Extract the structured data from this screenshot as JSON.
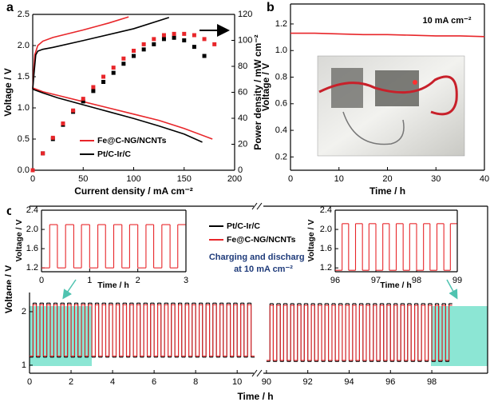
{
  "chart_data": [
    {
      "type": "line",
      "label": "a",
      "xlabel": "Current density / mA cm⁻²",
      "ylabel": "Voltage / V",
      "y2label": "Power density / mW cm⁻²",
      "xlim": [
        0,
        200
      ],
      "xticks": [
        0,
        50,
        100,
        150,
        200
      ],
      "ylim": [
        0,
        2.5
      ],
      "yticks": [
        {
          "value": 0,
          "label": "0.0"
        },
        0.5,
        {
          "value": 1,
          "label": "1.0"
        },
        1.5,
        {
          "value": 2,
          "label": "2.0"
        },
        2.5
      ],
      "y2lim": [
        0,
        120
      ],
      "y2ticks": [
        0,
        20,
        40,
        60,
        80,
        100,
        120
      ],
      "legend": "lower left",
      "series": [
        {
          "name": "Fe@C-NG/NCNTs",
          "color": "#e8262a",
          "x": [
            0,
            10,
            25,
            50,
            75,
            100,
            125,
            150,
            178
          ],
          "values": [
            1.32,
            1.26,
            1.2,
            1.1,
            1.0,
            0.9,
            0.8,
            0.67,
            0.5
          ]
        },
        {
          "name": "Pt/C-Ir/C",
          "color": "#000000",
          "x": [
            0,
            10,
            25,
            50,
            75,
            100,
            125,
            150,
            168
          ],
          "values": [
            1.3,
            1.24,
            1.16,
            1.05,
            0.94,
            0.83,
            0.71,
            0.58,
            0.45
          ]
        },
        {
          "color": "#e8262a",
          "x": [
            0,
            1,
            2,
            5,
            10,
            20,
            50,
            75,
            95
          ],
          "values": [
            1.3,
            1.6,
            1.85,
            2.0,
            2.07,
            2.13,
            2.25,
            2.36,
            2.46
          ]
        },
        {
          "color": "#000000",
          "x": [
            0,
            1,
            3,
            5,
            10,
            20,
            50,
            100,
            135
          ],
          "values": [
            1.3,
            1.5,
            1.85,
            1.91,
            1.94,
            1.97,
            2.08,
            2.27,
            2.45
          ]
        },
        {
          "color": "#000000",
          "axis": "y2",
          "marker": "square",
          "x": [
            0,
            10,
            20,
            30,
            40,
            50,
            60,
            70,
            80,
            90,
            100,
            110,
            120,
            130,
            140,
            150,
            160,
            170
          ],
          "values": [
            0,
            13,
            24,
            35,
            45,
            53,
            61,
            68,
            75,
            82,
            88,
            93,
            97,
            101,
            102,
            100,
            95,
            88
          ]
        },
        {
          "color": "#e8262a",
          "axis": "y2",
          "marker": "square",
          "x": [
            0,
            10,
            20,
            30,
            40,
            50,
            60,
            70,
            80,
            90,
            100,
            110,
            120,
            130,
            140,
            150,
            160,
            170,
            180
          ],
          "values": [
            0,
            13,
            25,
            36,
            46,
            55,
            64,
            72,
            79,
            86,
            92,
            97,
            101,
            104,
            105,
            105,
            104,
            101,
            97
          ]
        }
      ]
    },
    {
      "type": "line",
      "label": "b",
      "xlabel": "Time / h",
      "ylabel": "Voltage / V",
      "annotation": "10 mA cm⁻²",
      "xlim": [
        0,
        40
      ],
      "xticks": [
        0,
        10,
        20,
        30,
        40
      ],
      "ylim": [
        0.1,
        1.35
      ],
      "yticks": [
        0.2,
        0.4,
        0.6,
        0.8,
        {
          "value": 1,
          "label": "1.0"
        },
        1.2
      ],
      "series": [
        {
          "color": "#e8262a",
          "x": [
            0,
            5,
            10,
            15,
            20,
            25,
            30,
            35,
            40
          ],
          "values": [
            1.13,
            1.13,
            1.125,
            1.12,
            1.12,
            1.115,
            1.11,
            1.11,
            1.105
          ]
        }
      ]
    },
    {
      "type": "step",
      "label": "c",
      "xlabel": "Time / h",
      "ylabel": "Voltage / V",
      "annotation": [
        "Charging and discharging",
        "at 10 mA cm⁻²"
      ],
      "xlim": [
        0,
        10.8
      ],
      "xticks": [
        0,
        2,
        4,
        6,
        8,
        10
      ],
      "ylim": [
        0.85,
        3.97
      ],
      "yticks": [
        1,
        2
      ],
      "x": [
        0,
        0.17,
        0.33,
        0.5,
        0.67,
        0.83,
        1,
        1.17,
        1.33,
        1.5,
        1.67,
        1.83,
        2,
        2.17,
        2.33,
        2.5,
        2.67,
        2.83,
        3,
        3.17,
        3.33,
        3.5,
        3.67,
        3.83,
        4,
        4.17,
        4.33,
        4.5,
        4.67,
        4.83,
        5,
        5.17,
        5.33,
        5.5,
        5.67,
        5.83,
        6,
        6.17,
        6.33,
        6.5,
        6.67,
        6.83,
        7,
        7.17,
        7.33,
        7.5,
        7.67,
        7.83,
        8,
        8.17,
        8.33,
        8.5,
        8.67,
        8.83,
        9,
        9.17,
        9.33,
        9.5,
        9.67,
        9.83,
        10,
        10.17,
        10.33,
        10.5,
        10.67
      ],
      "series": [
        {
          "name": "Pt/C-Ir/C",
          "color": "#000000",
          "values": [
            1.15,
            2.16,
            1.15,
            2.16,
            1.15,
            2.16,
            1.15,
            2.16,
            1.15,
            2.16,
            1.15,
            2.16,
            1.15,
            2.16,
            1.15,
            2.16,
            1.15,
            2.16,
            1.15,
            2.16,
            1.15,
            2.16,
            1.15,
            2.16,
            1.15,
            2.16,
            1.15,
            2.16,
            1.15,
            2.16,
            1.15,
            2.16,
            1.15,
            2.16,
            1.15,
            2.16,
            1.15,
            2.16,
            1.15,
            2.16,
            1.15,
            2.16,
            1.15,
            2.16,
            1.15,
            2.16,
            1.15,
            2.16,
            1.15,
            2.16,
            1.15,
            2.16,
            1.15,
            2.16,
            1.15,
            2.16,
            1.15,
            2.16,
            1.15,
            2.16,
            1.15,
            2.16,
            1.15,
            2.16,
            1.15
          ]
        },
        {
          "name": "Fe@C-NG/NCNTs",
          "color": "#e8262a",
          "values": [
            1.17,
            2.13,
            1.17,
            2.13,
            1.17,
            2.13,
            1.17,
            2.13,
            1.17,
            2.13,
            1.17,
            2.13,
            1.17,
            2.13,
            1.17,
            2.13,
            1.17,
            2.13,
            1.17,
            2.13,
            1.17,
            2.13,
            1.17,
            2.13,
            1.17,
            2.13,
            1.17,
            2.13,
            1.17,
            2.13,
            1.17,
            2.13,
            1.17,
            2.13,
            1.17,
            2.13,
            1.17,
            2.13,
            1.17,
            2.13,
            1.17,
            2.13,
            1.17,
            2.13,
            1.17,
            2.13,
            1.17,
            2.13,
            1.17,
            2.13,
            1.17,
            2.13,
            1.17,
            2.13,
            1.17,
            2.13,
            1.17,
            2.13,
            1.17,
            2.13,
            1.17,
            2.13,
            1.17,
            2.13,
            1.17
          ]
        }
      ]
    },
    {
      "type": "step",
      "xlim": [
        89.85,
        100.7
      ],
      "xticks": [
        90,
        92,
        94,
        96,
        98
      ],
      "ylim": [
        0.85,
        3.97
      ],
      "x": [
        90,
        90.17,
        90.33,
        90.5,
        90.67,
        90.83,
        91,
        91.17,
        91.33,
        91.5,
        91.67,
        91.83,
        92,
        92.17,
        92.33,
        92.5,
        92.67,
        92.83,
        93,
        93.17,
        93.33,
        93.5,
        93.67,
        93.83,
        94,
        94.17,
        94.33,
        94.5,
        94.67,
        94.83,
        95,
        95.17,
        95.33,
        95.5,
        95.67,
        95.83,
        96,
        96.17,
        96.33,
        96.5,
        96.67,
        96.83,
        97,
        97.17,
        97.33,
        97.5,
        97.67,
        97.83,
        98,
        98.17,
        98.33,
        98.5,
        98.67,
        98.83
      ],
      "series": [
        {
          "color": "#000000",
          "values": [
            1.07,
            2.15,
            1.07,
            2.15,
            1.07,
            2.15,
            1.07,
            2.15,
            1.07,
            2.15,
            1.07,
            2.15,
            1.07,
            2.15,
            1.07,
            2.15,
            1.07,
            2.15,
            1.07,
            2.15,
            1.07,
            2.15,
            1.07,
            2.15,
            1.07,
            2.15,
            1.07,
            2.15,
            1.07,
            2.15,
            1.07,
            2.15,
            1.07,
            2.15,
            1.07,
            2.15,
            1.07,
            2.15,
            1.07,
            2.15,
            1.07,
            2.15,
            1.07,
            2.15,
            1.07,
            2.15,
            1.07,
            2.15,
            1.07,
            2.15,
            1.07,
            2.15,
            1.07,
            2.15
          ]
        },
        {
          "color": "#e8262a",
          "values": [
            1.09,
            2.12,
            1.09,
            2.12,
            1.09,
            2.12,
            1.09,
            2.12,
            1.09,
            2.12,
            1.09,
            2.12,
            1.09,
            2.12,
            1.09,
            2.12,
            1.09,
            2.12,
            1.09,
            2.12,
            1.09,
            2.12,
            1.09,
            2.12,
            1.09,
            2.12,
            1.09,
            2.12,
            1.09,
            2.12,
            1.09,
            2.12,
            1.09,
            2.12,
            1.09,
            2.12,
            1.09,
            2.12,
            1.09,
            2.12,
            1.09,
            2.12,
            1.09,
            2.12,
            1.09,
            2.12,
            1.09,
            2.12,
            1.09,
            2.12,
            1.09,
            2.12,
            1.09,
            2.12
          ]
        }
      ]
    },
    {
      "type": "step",
      "xlabel": "Time / h",
      "ylabel": "Voltage / V",
      "xlim": [
        0,
        3
      ],
      "xticks": [
        0,
        1,
        2,
        3
      ],
      "ylim": [
        1.12,
        2.4
      ],
      "yticks": [
        1.2,
        1.6,
        {
          "value": 2,
          "label": "2.0"
        },
        2.4
      ],
      "x": [
        0,
        0.17,
        0.33,
        0.5,
        0.67,
        0.83,
        1,
        1.17,
        1.33,
        1.5,
        1.67,
        1.83,
        2,
        2.17,
        2.33,
        2.5,
        2.67,
        2.83
      ],
      "series": [
        {
          "color": "#e8262a",
          "values": [
            1.2,
            2.1,
            1.2,
            2.1,
            1.2,
            2.1,
            1.2,
            2.1,
            1.2,
            2.1,
            1.2,
            2.1,
            1.2,
            2.1,
            1.2,
            2.1,
            1.2,
            2.1
          ]
        }
      ]
    },
    {
      "type": "step",
      "xlabel": "Time / h",
      "ylabel": "Voltage / V",
      "xlim": [
        96,
        99
      ],
      "xticks": [
        96,
        97,
        98,
        99
      ],
      "ylim": [
        1.12,
        2.4
      ],
      "yticks": [
        1.2,
        1.6,
        {
          "value": 2,
          "label": "2.0"
        },
        2.4
      ],
      "x": [
        96,
        96.17,
        96.33,
        96.5,
        96.67,
        96.83,
        97,
        97.17,
        97.33,
        97.5,
        97.67,
        97.83,
        98,
        98.17,
        98.33,
        98.5,
        98.67,
        98.83
      ],
      "series": [
        {
          "color": "#e8262a",
          "values": [
            1.15,
            2.12,
            1.15,
            2.12,
            1.15,
            2.12,
            1.15,
            2.12,
            1.15,
            2.12,
            1.15,
            2.12,
            1.15,
            2.12,
            1.15,
            2.12,
            1.15,
            2.12
          ]
        }
      ]
    }
  ]
}
